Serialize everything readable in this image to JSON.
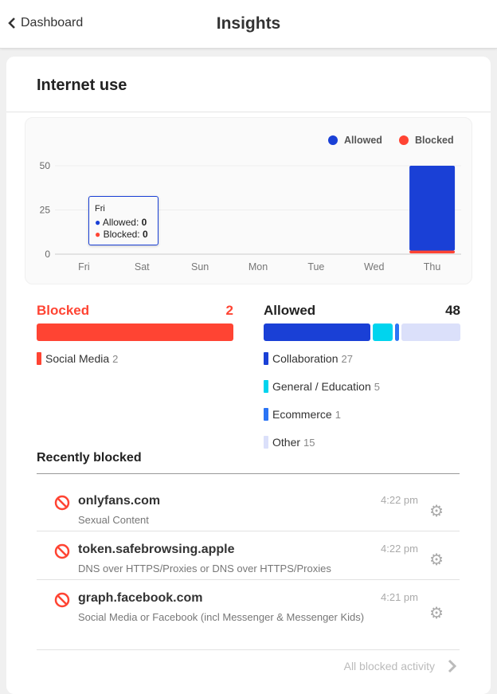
{
  "header": {
    "back_label": "Dashboard",
    "title": "Insights"
  },
  "card": {
    "title": "Internet use"
  },
  "chart_data": {
    "type": "bar",
    "stacked": true,
    "categories": [
      "Fri",
      "Sat",
      "Sun",
      "Mon",
      "Tue",
      "Wed",
      "Thu"
    ],
    "series": [
      {
        "name": "Allowed",
        "color": "#1a40d6",
        "values": [
          0,
          0,
          0,
          0,
          0,
          0,
          48
        ]
      },
      {
        "name": "Blocked",
        "color": "#ff4433",
        "values": [
          0,
          0,
          0,
          0,
          0,
          0,
          2
        ]
      }
    ],
    "yticks": [
      0,
      25,
      50
    ],
    "ylim": [
      0,
      50
    ],
    "grid": true,
    "legend": "top-right",
    "tooltip": {
      "title": "Fri",
      "allowed_label": "Allowed:",
      "allowed_value": "0",
      "blocked_label": "Blocked:",
      "blocked_value": "0"
    }
  },
  "blocked": {
    "label": "Blocked",
    "total": "2",
    "categories": [
      {
        "name": "Social Media",
        "count": "2",
        "color": "#ff4433",
        "value": 2
      }
    ]
  },
  "allowed": {
    "label": "Allowed",
    "total": "48",
    "categories": [
      {
        "name": "Collaboration",
        "count": "27",
        "color": "#1a40d6",
        "value": 27
      },
      {
        "name": "General / Education",
        "count": "5",
        "color": "#00d4ee",
        "value": 5
      },
      {
        "name": "Ecommerce",
        "count": "1",
        "color": "#2b74f5",
        "value": 1
      },
      {
        "name": "Other",
        "count": "15",
        "color": "#dbe0fa",
        "value": 15
      }
    ]
  },
  "recent": {
    "title": "Recently blocked",
    "items": [
      {
        "domain": "onlyfans.com",
        "category": "Sexual Content",
        "time": "4:22 pm"
      },
      {
        "domain": "token.safebrowsing.apple",
        "category": "DNS over HTTPS/Proxies or DNS over HTTPS/Proxies",
        "time": "4:22 pm"
      },
      {
        "domain": "graph.facebook.com",
        "category": "Social Media or Facebook (incl Messenger & Messenger Kids)",
        "time": "4:21 pm"
      }
    ],
    "all_link": "All blocked activity"
  }
}
